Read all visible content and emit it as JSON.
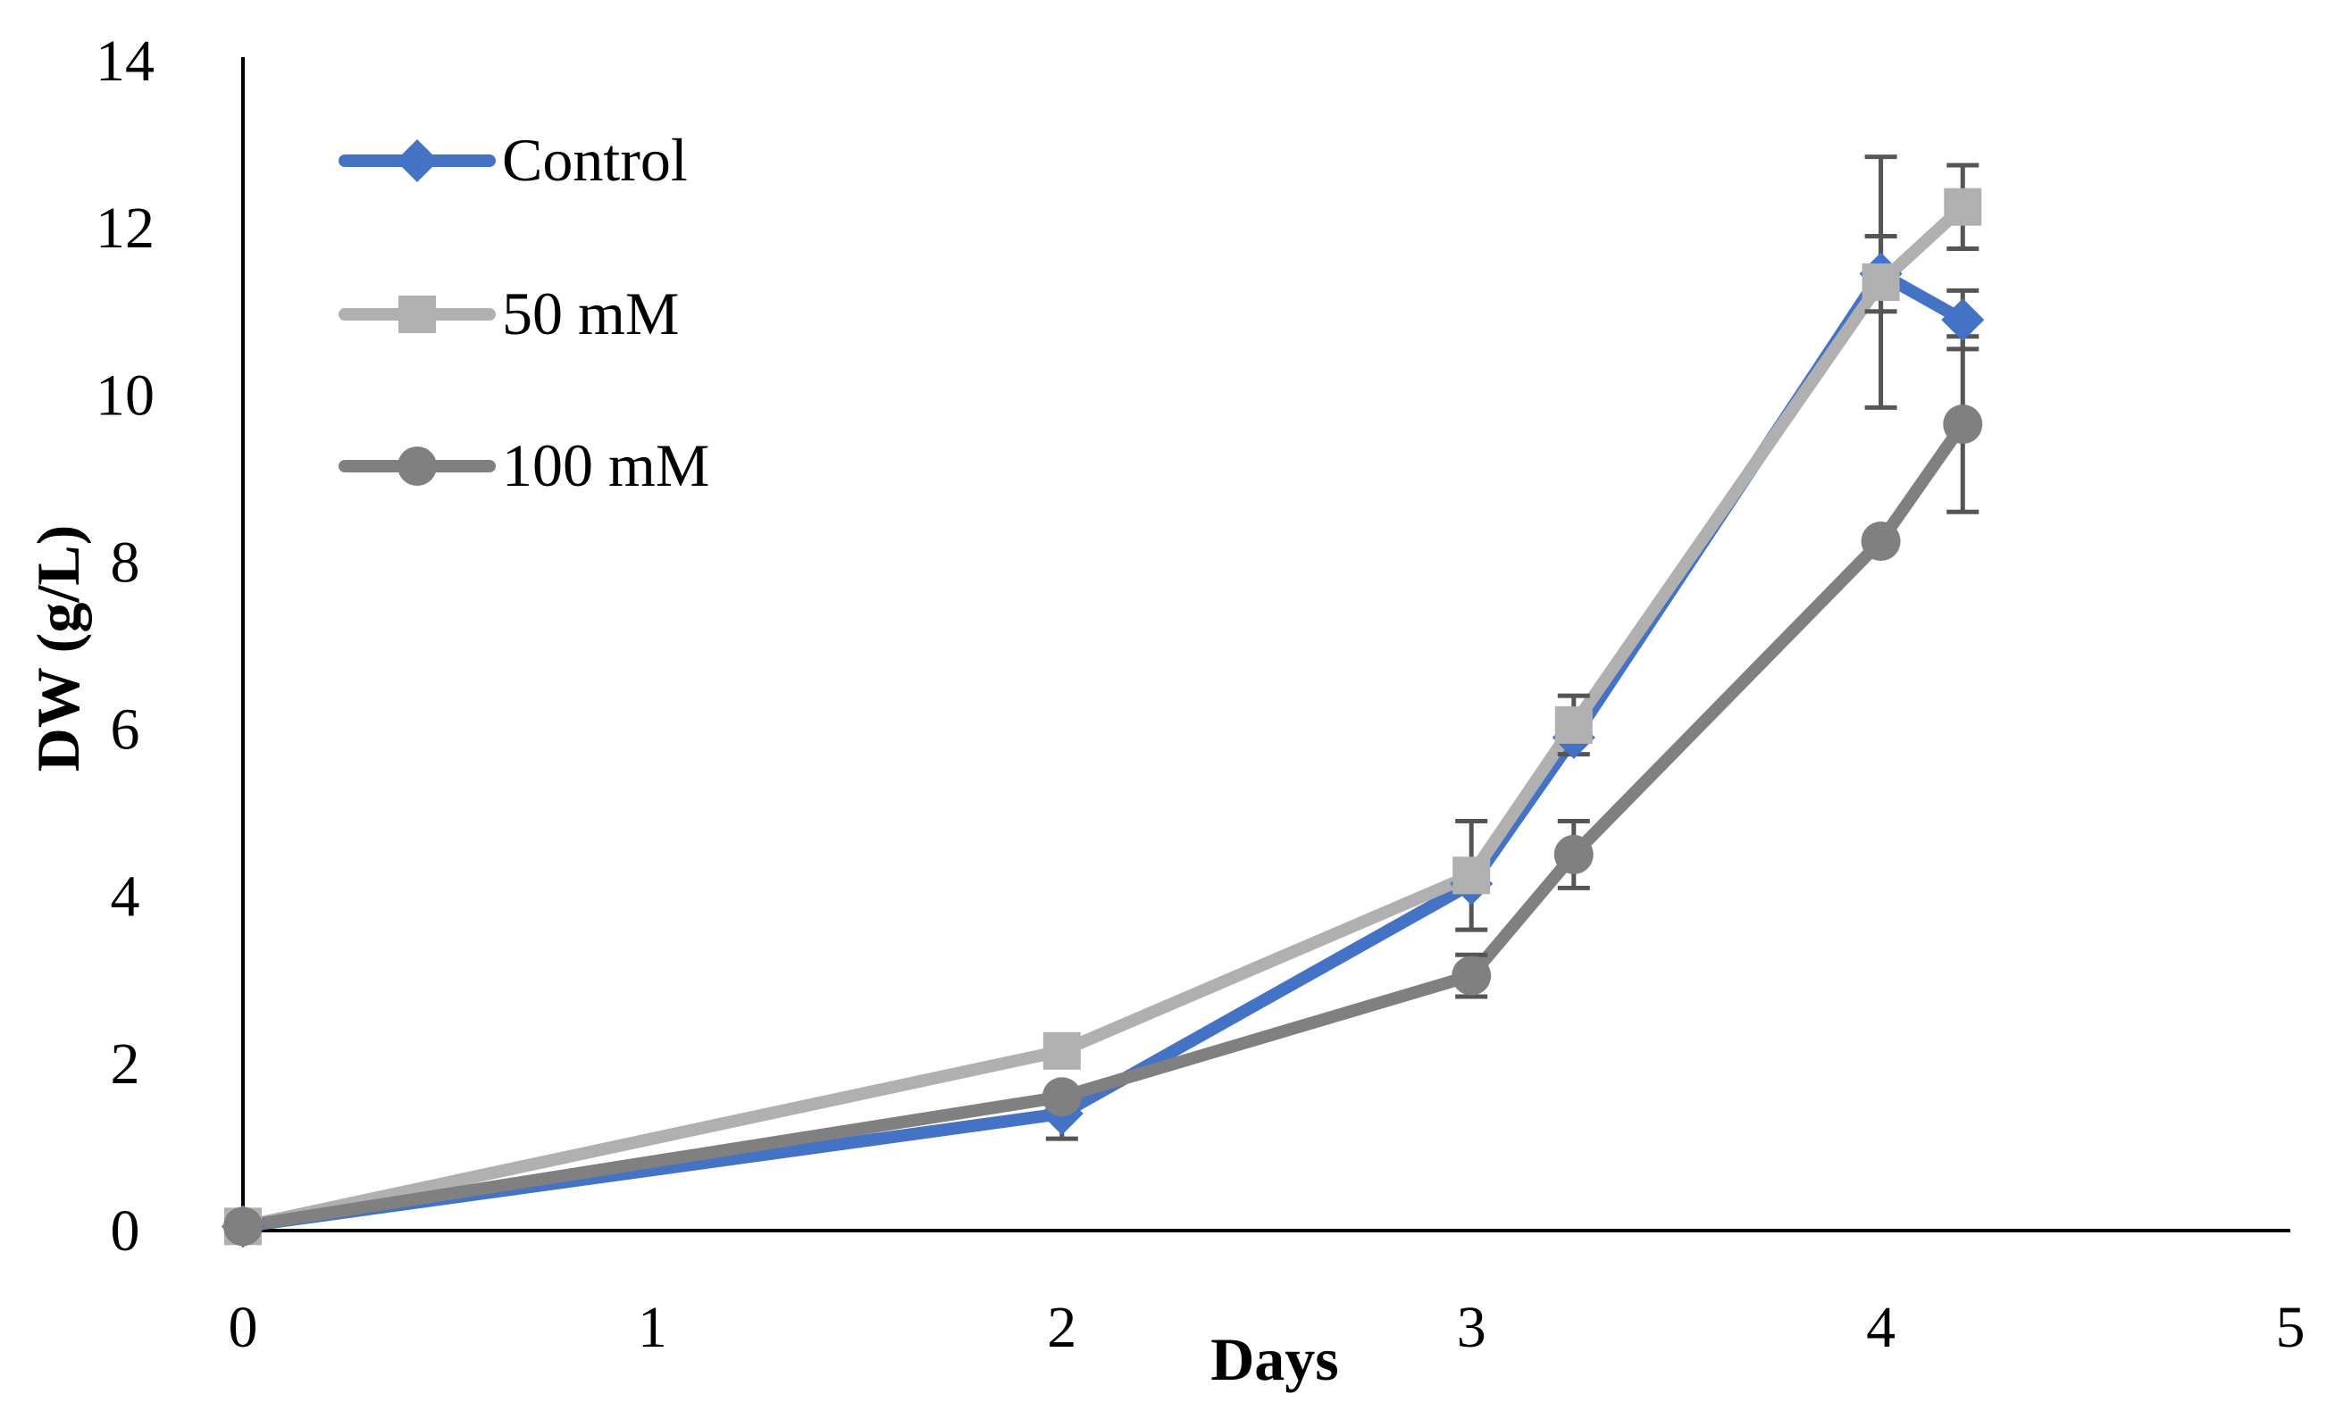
{
  "chart_data": {
    "type": "line",
    "title": "",
    "xlabel": "Days",
    "ylabel": "DW (g/L)",
    "xlim": [
      0,
      5
    ],
    "ylim": [
      0,
      14
    ],
    "x_ticks": [
      "0",
      "1",
      "2",
      "3",
      "4",
      "5"
    ],
    "y_ticks": [
      "0",
      "2",
      "4",
      "6",
      "8",
      "10",
      "12",
      "14"
    ],
    "grid": false,
    "legend_position": "top-left",
    "x": [
      0,
      2,
      3,
      3.25,
      4,
      4.2
    ],
    "series": [
      {
        "name": "Control",
        "color": "#4472C4",
        "marker": "diamond",
        "values": [
          0.05,
          1.4,
          4.15,
          5.9,
          11.45,
          10.9
        ],
        "errors": [
          0,
          0.3,
          0,
          0,
          0.45,
          0.35
        ]
      },
      {
        "name": "50 mM",
        "color": "#B0B0B0",
        "marker": "square",
        "values": [
          0.05,
          2.15,
          4.25,
          6.05,
          11.35,
          12.25
        ],
        "errors": [
          0,
          0,
          0.65,
          0.35,
          1.5,
          0.5
        ]
      },
      {
        "name": "100 mM",
        "color": "#808080",
        "marker": "circle",
        "values": [
          0.05,
          1.6,
          3.05,
          4.5,
          8.25,
          9.65
        ],
        "errors": [
          0,
          0,
          0.25,
          0.4,
          0,
          1.05
        ]
      }
    ]
  }
}
